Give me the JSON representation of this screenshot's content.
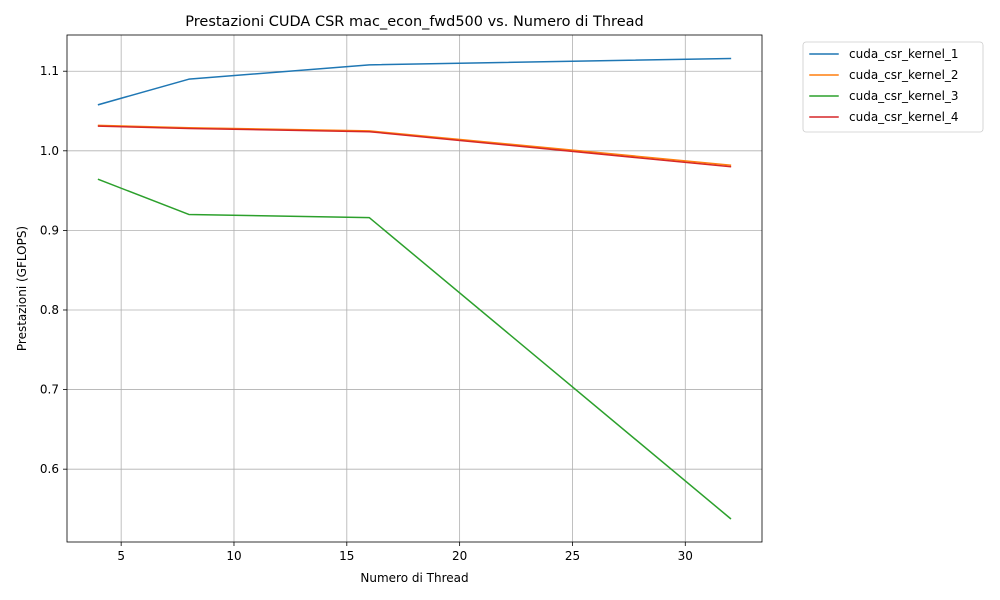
{
  "chart_data": {
    "type": "line",
    "title": "Prestazioni CUDA CSR mac_econ_fwd500 vs. Numero di Thread",
    "xlabel": "Numero di Thread",
    "ylabel": "Prestazioni (GFLOPS)",
    "xlim": [
      2.6,
      33.4
    ],
    "ylim": [
      0.5085,
      1.1455
    ],
    "xticks": [
      5,
      10,
      15,
      20,
      25,
      30
    ],
    "yticks": [
      0.6,
      0.7,
      0.8,
      0.9,
      1.0,
      1.1
    ],
    "grid": true,
    "legend_position": "outside-top-right",
    "x": [
      4,
      8,
      16,
      32
    ],
    "series": [
      {
        "name": "cuda_csr_kernel_1",
        "color": "#1f77b4",
        "values": [
          1.058,
          1.09,
          1.108,
          1.116
        ]
      },
      {
        "name": "cuda_csr_kernel_2",
        "color": "#ff7f0e",
        "values": [
          1.032,
          1.029,
          1.025,
          0.982
        ]
      },
      {
        "name": "cuda_csr_kernel_3",
        "color": "#2ca02c",
        "values": [
          0.964,
          0.92,
          0.916,
          0.538
        ]
      },
      {
        "name": "cuda_csr_kernel_4",
        "color": "#d62728",
        "values": [
          1.031,
          1.028,
          1.024,
          0.98
        ]
      }
    ]
  }
}
